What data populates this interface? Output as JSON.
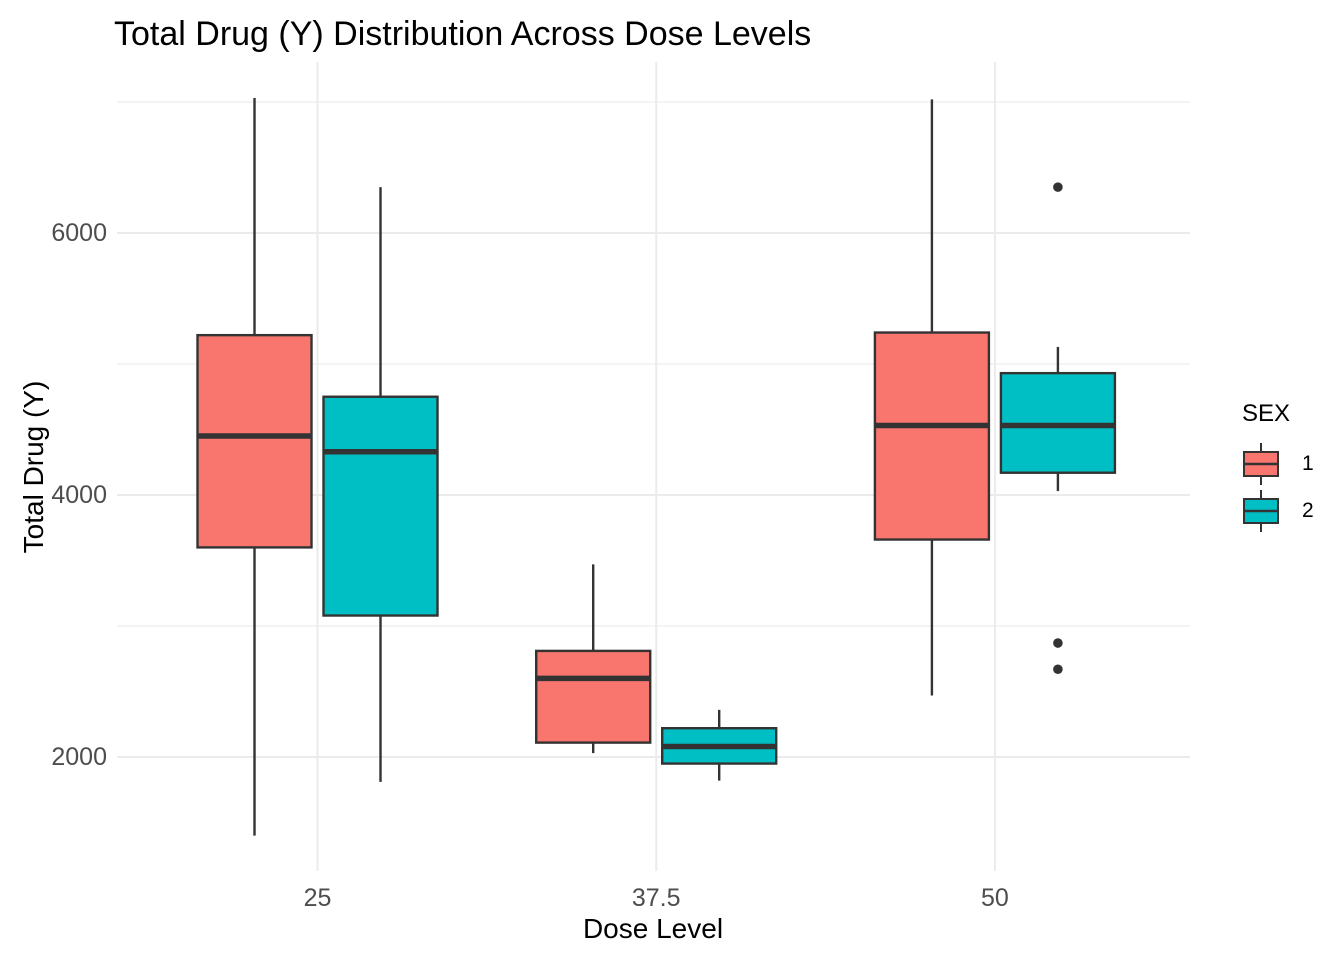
{
  "colors": {
    "sex1": "#F8766D",
    "sex2": "#00BFC4",
    "box_border": "#333333",
    "grid_major": "#EBEBEB",
    "grid_minor": "#F0F0F0",
    "tick_text": "#4D4D4D",
    "outlier": "#333333",
    "background": "#FFFFFF"
  },
  "chart_data": {
    "type": "boxplot",
    "title": "Total Drug (Y) Distribution Across Dose Levels",
    "xlabel": "Dose Level",
    "ylabel": "Total Drug (Y)",
    "legend_title": "SEX",
    "legend_position": "right",
    "grid": true,
    "categories": [
      "25",
      "37.5",
      "50"
    ],
    "x_values": [
      25,
      37.5,
      50
    ],
    "xlim": [
      17.6,
      57.2
    ],
    "y_ticks": [
      2000,
      4000,
      6000
    ],
    "y_minor_gridlines": [
      3000,
      5000,
      7000
    ],
    "ylim": [
      1130,
      7305
    ],
    "series": [
      {
        "name": "1",
        "color": "#F8766D",
        "boxes": [
          {
            "category": "25",
            "min": 1400,
            "q1": 3600,
            "median": 4450,
            "q3": 5220,
            "max": 7030,
            "outliers": []
          },
          {
            "category": "37.5",
            "min": 2030,
            "q1": 2110,
            "median": 2600,
            "q3": 2810,
            "max": 3470,
            "outliers": []
          },
          {
            "category": "50",
            "min": 2470,
            "q1": 3660,
            "median": 4530,
            "q3": 5240,
            "max": 7020,
            "outliers": []
          }
        ]
      },
      {
        "name": "2",
        "color": "#00BFC4",
        "boxes": [
          {
            "category": "25",
            "min": 1810,
            "q1": 3080,
            "median": 4330,
            "q3": 4750,
            "max": 6350,
            "outliers": []
          },
          {
            "category": "37.5",
            "min": 1820,
            "q1": 1950,
            "median": 2080,
            "q3": 2220,
            "max": 2360,
            "outliers": []
          },
          {
            "category": "50",
            "min": 4030,
            "q1": 4170,
            "median": 4530,
            "q3": 4930,
            "max": 5130,
            "outliers": [
              6350,
              2870,
              2670
            ]
          }
        ]
      }
    ]
  }
}
